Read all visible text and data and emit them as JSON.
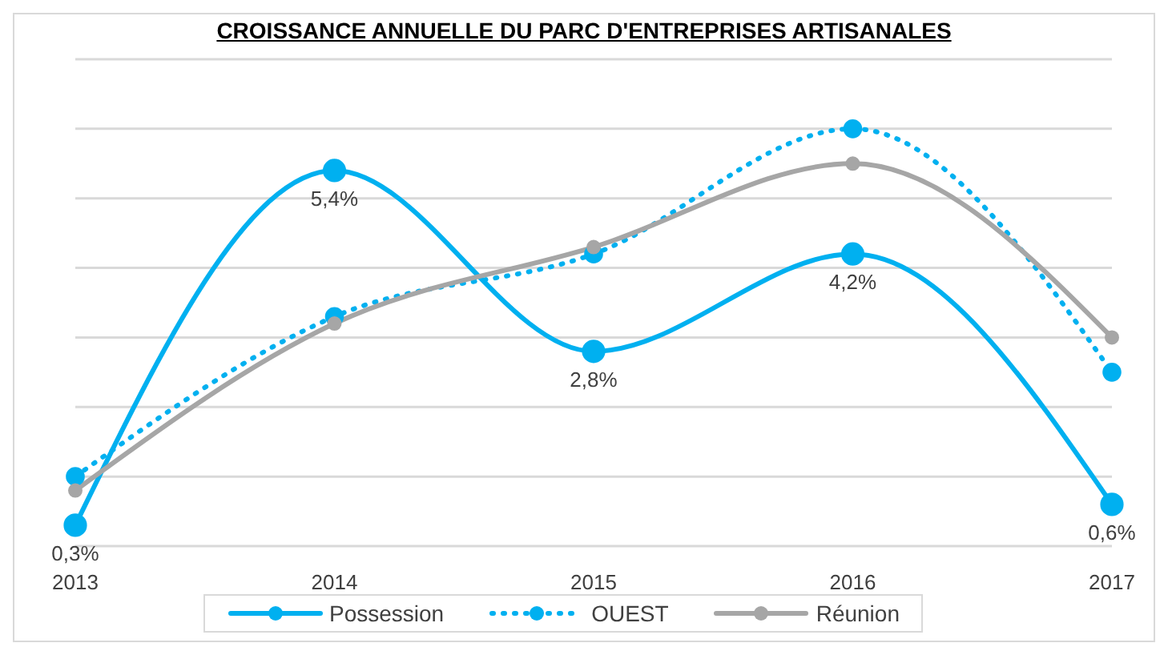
{
  "chart_data": {
    "type": "line",
    "title": "CROISSANCE ANNUELLE DU PARC D'ENTREPRISES ARTISANALES",
    "categories": [
      "2013",
      "2014",
      "2015",
      "2016",
      "2017"
    ],
    "series": [
      {
        "name": "Possession",
        "color": "#00b0f0",
        "values": [
          0.3,
          5.4,
          2.8,
          4.2,
          0.6
        ],
        "value_labels": [
          "0,3%",
          "5,4%",
          "2,8%",
          "4,2%",
          "0,6%"
        ],
        "line_style": "solid"
      },
      {
        "name": "OUEST",
        "color": "#00b0f0",
        "values": [
          1.0,
          3.3,
          4.2,
          6.0,
          2.5
        ],
        "line_style": "dotted"
      },
      {
        "name": "Réunion",
        "color": "#a6a6a6",
        "values": [
          0.8,
          3.2,
          4.3,
          5.5,
          3.0
        ],
        "line_style": "solid"
      }
    ],
    "ylim": [
      0,
      7
    ],
    "yticks": [
      {
        "value": 0,
        "label": null
      },
      {
        "value": 1,
        "label": null
      },
      {
        "value": 2,
        "label": null
      },
      {
        "value": 3,
        "label": null
      },
      {
        "value": 4,
        "label": null
      },
      {
        "value": 5,
        "label": null
      },
      {
        "value": 6,
        "label": null
      },
      {
        "value": 7,
        "label": null
      }
    ],
    "tick_labels": "x",
    "grid": "y",
    "legend": "bottom",
    "marker": "circle"
  }
}
